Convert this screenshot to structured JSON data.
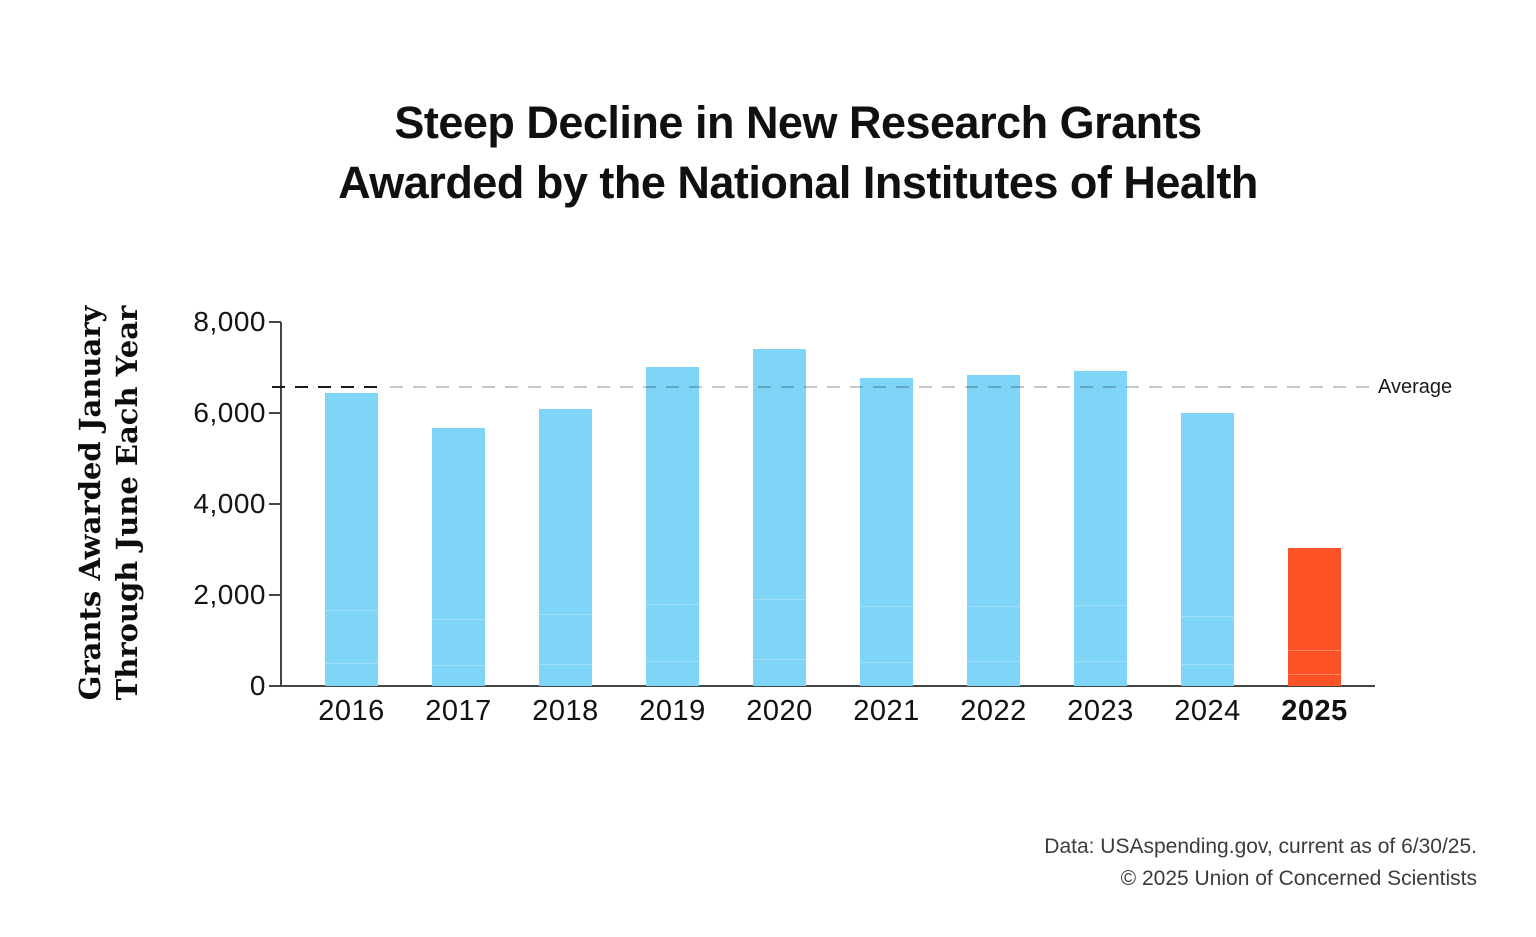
{
  "chart_data": {
    "type": "bar",
    "title_lines": [
      "Steep Decline in New Research Grants",
      "Awarded by the National Institutes of Health"
    ],
    "title": "Steep Decline in New Research Grants Awarded by the National Institutes of Health",
    "categories": [
      "2016",
      "2017",
      "2018",
      "2019",
      "2020",
      "2021",
      "2022",
      "2023",
      "2024",
      "2025"
    ],
    "values": [
      6430,
      5660,
      6080,
      7010,
      7400,
      6770,
      6830,
      6920,
      5990,
      3040
    ],
    "highlight_category": "2025",
    "xlabel": "",
    "ylabel_lines": [
      "Grants Awarded January",
      "Through June Each Year"
    ],
    "ylabel": "Grants Awarded January Through June Each Year",
    "ylim": [
      0,
      8000
    ],
    "yticks": [
      {
        "value": 0,
        "label": "0"
      },
      {
        "value": 2000,
        "label": "2,000"
      },
      {
        "value": 4000,
        "label": "4,000"
      },
      {
        "value": 6000,
        "label": "6,000"
      },
      {
        "value": 8000,
        "label": "8,000"
      }
    ],
    "average": {
      "value": 6570,
      "label": "Average"
    },
    "colors": {
      "bar": "#7ED5F7",
      "highlight": "#FF5226",
      "dash_gray": "#C8C8C8",
      "dash_dark": "#1A1A1A",
      "axis": "#454545"
    },
    "grid": false,
    "legend": "none"
  },
  "footer": {
    "source": "Data: USAspending.gov, current as of 6/30/25.",
    "copyright": "© 2025 Union of Concerned Scientists"
  }
}
